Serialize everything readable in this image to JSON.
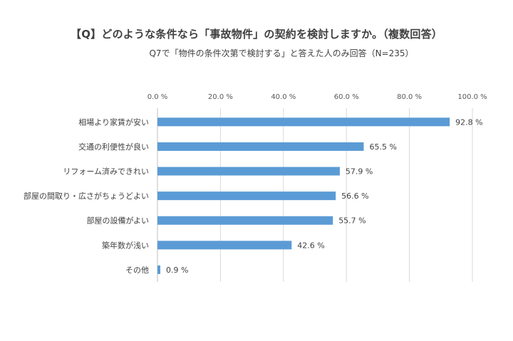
{
  "title": "【Q】どのような条件なら「事故物件」の契約を検討しますか。（複数回答）",
  "subtitle": "Q7で「物件の条件次第で検討する」と答えた人のみ回答（N=235）",
  "colors": {
    "bar": "#5b9bd5",
    "grid": "#d9d9d9",
    "text": "#404040"
  },
  "chart_data": {
    "type": "bar",
    "orientation": "horizontal",
    "title": "【Q】どのような条件なら「事故物件」の契約を検討しますか。（複数回答）",
    "subtitle": "Q7で「物件の条件次第で検討する」と答えた人のみ回答（N=235）",
    "categories": [
      "相場より家賃が安い",
      "交通の利便性が良い",
      "リフォーム済みできれい",
      "部屋の間取り・広さがちょうどよい",
      "部屋の設備がよい",
      "築年数が浅い",
      "その他"
    ],
    "values": [
      92.8,
      65.5,
      57.9,
      56.6,
      55.7,
      42.6,
      0.9
    ],
    "data_labels": [
      "92.8 %",
      "65.5 %",
      "57.9 %",
      "56.6 %",
      "55.7 %",
      "42.6 %",
      "0.9 %"
    ],
    "xlim": [
      0,
      100
    ],
    "xticks": [
      0,
      20,
      40,
      60,
      80,
      100
    ],
    "xtick_labels": [
      "0.0 %",
      "20.0 %",
      "40.0 %",
      "60.0 %",
      "80.0 %",
      "100.0 %"
    ],
    "xaxis_position": "top",
    "grid": true,
    "legend": "none"
  }
}
